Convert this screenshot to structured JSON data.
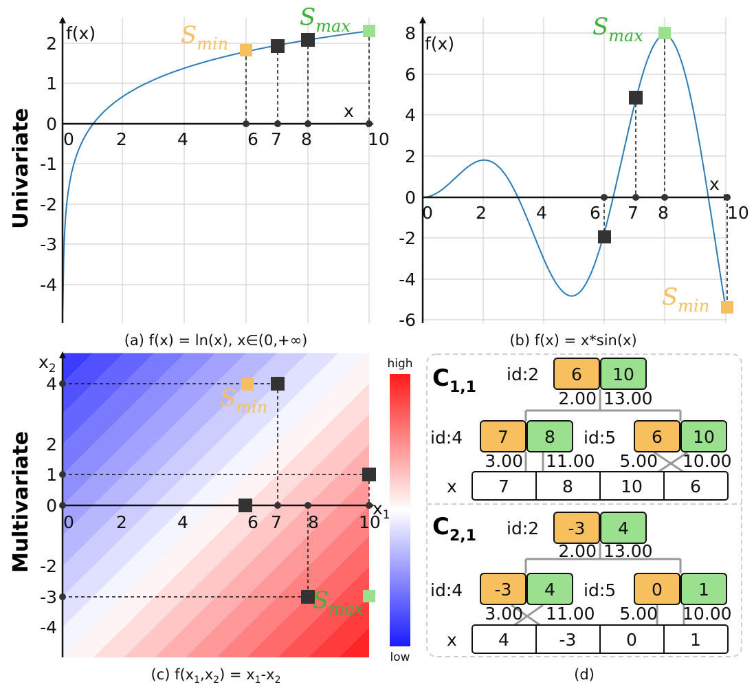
{
  "colors": {
    "curve": "#2b7bb9",
    "min_orange": "#f8bf5f",
    "min_text": "#f0a92a",
    "max_green": "#9be08e",
    "max_text": "#3db13a",
    "dark_square": "#333333",
    "grid": "#c8c8c8"
  },
  "rows": {
    "univariate": "Univariate",
    "multivariate": "Multivariate"
  },
  "panel_a": {
    "caption": "(a) f(x) = ln(x), x∈(0,+∞)",
    "ylabel": "f(x)",
    "xlabel": "x",
    "x_ticks": [
      "0",
      "2",
      "4",
      "6",
      "7",
      "8",
      "10"
    ],
    "y_ticks": [
      "2",
      "1",
      "0",
      "-1",
      "-2",
      "-3",
      "-4"
    ],
    "s_min": {
      "s": "S",
      "sub": "min"
    },
    "s_max": {
      "s": "S",
      "sub": "max"
    }
  },
  "panel_b": {
    "caption": "(b) f(x) = x*sin(x)",
    "ylabel": "f(x)",
    "xlabel": "x",
    "x_ticks": [
      "0",
      "2",
      "4",
      "6",
      "7",
      "8",
      "10"
    ],
    "y_ticks": [
      "8",
      "6",
      "4",
      "2",
      "0",
      "-2",
      "-4",
      "-6"
    ],
    "s_min": {
      "s": "S",
      "sub": "min"
    },
    "s_max": {
      "s": "S",
      "sub": "max"
    }
  },
  "panel_c": {
    "caption_parts": [
      "(c) f(x",
      "1",
      ",x",
      "2",
      ") = x",
      "1",
      "-x",
      "2"
    ],
    "ylabel": {
      "s": "x",
      "sub": "2"
    },
    "xlabel": {
      "s": "x",
      "sub": "1"
    },
    "x_ticks": [
      "0",
      "2",
      "4",
      "6",
      "7",
      "8",
      "10"
    ],
    "y_ticks": [
      "4",
      "2",
      "1",
      "0",
      "-2",
      "-3",
      "-4"
    ],
    "s_min": {
      "s": "S",
      "sub": "min"
    },
    "s_max": {
      "s": "S",
      "sub": "max"
    },
    "colorbar": {
      "high": "high",
      "low": "low"
    }
  },
  "panel_d": {
    "caption": "(d)",
    "x_label": "x",
    "c11": {
      "title": "C",
      "sub": "1,1",
      "root": {
        "id": "id:2",
        "min": "6",
        "max": "10",
        "left": "2.00",
        "right": "13.00"
      },
      "left": {
        "id": "id:4",
        "min": "7",
        "max": "8",
        "left": "3.00",
        "right": "11.00"
      },
      "right": {
        "id": "id:5",
        "min": "6",
        "max": "10",
        "left": "5.00",
        "right": "10.00"
      },
      "x_values": [
        "7",
        "8",
        "10",
        "6"
      ]
    },
    "c21": {
      "title": "C",
      "sub": "2,1",
      "root": {
        "id": "id:2",
        "min": "-3",
        "max": "4",
        "left": "2.00",
        "right": "13.00"
      },
      "left": {
        "id": "id:4",
        "min": "-3",
        "max": "4",
        "left": "3.00",
        "right": "11.00"
      },
      "right": {
        "id": "id:5",
        "min": "0",
        "max": "1",
        "left": "5.00",
        "right": "10.00"
      },
      "x_values": [
        "4",
        "-3",
        "0",
        "1"
      ]
    }
  }
}
